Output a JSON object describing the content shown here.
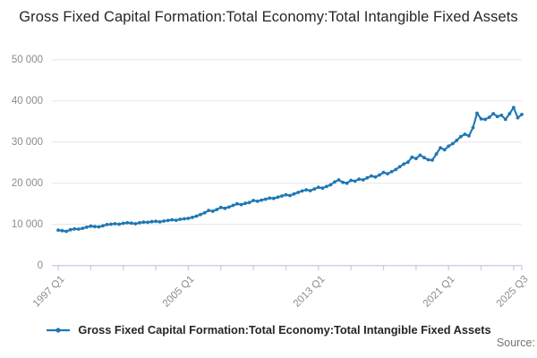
{
  "title": "Gross Fixed Capital Formation:Total Economy:Total Intangible Fixed Assets",
  "legend": {
    "label": "Gross Fixed Capital Formation:Total Economy:Total Intangible Fixed Assets"
  },
  "source_label": "Source:",
  "colors": {
    "series_line": "#1f77b4",
    "gridline": "#e6e6e6",
    "axis_line": "#c9cfe3",
    "tick_label": "#8c8c8c",
    "title_text": "#262626",
    "source_text": "#737373"
  },
  "chart_data": {
    "type": "line",
    "title": "Gross Fixed Capital Formation:Total Economy:Total Intangible Fixed Assets",
    "series_name": "Gross Fixed Capital Formation:Total Economy:Total Intangible Fixed Assets",
    "x_start": "1997 Q1",
    "x_end": "2025 Q3",
    "frequency": "quarterly",
    "ylim": [
      0,
      50000
    ],
    "grid": "horizontal",
    "legend_position": "bottom",
    "marker": "dot",
    "y_tick_labels": [
      "0",
      "10 000",
      "20 000",
      "30 000",
      "40 000",
      "50 000"
    ],
    "y_tick_values": [
      0,
      10000,
      20000,
      30000,
      40000,
      50000
    ],
    "x_tick_labels": [
      {
        "label": "1997 Q1",
        "q": 0
      },
      {
        "label": "2005 Q1",
        "q": 32
      },
      {
        "label": "2013 Q1",
        "q": 64
      },
      {
        "label": "2021 Q1",
        "q": 96
      },
      {
        "label": "2025 Q3",
        "q": 114
      }
    ],
    "minor_tick_every_quarters": 8,
    "values": [
      8600,
      8450,
      8300,
      8700,
      8900,
      8850,
      9050,
      9300,
      9570,
      9450,
      9400,
      9650,
      9950,
      10050,
      10150,
      10050,
      10250,
      10400,
      10300,
      10150,
      10400,
      10550,
      10500,
      10650,
      10750,
      10600,
      10800,
      10950,
      11100,
      11000,
      11240,
      11350,
      11450,
      11700,
      12000,
      12400,
      12800,
      13400,
      13200,
      13600,
      14100,
      13900,
      14200,
      14600,
      15000,
      14800,
      15100,
      15300,
      15800,
      15600,
      15900,
      16100,
      16400,
      16300,
      16600,
      16900,
      17200,
      17000,
      17400,
      17750,
      18100,
      18400,
      18200,
      18600,
      19000,
      18800,
      19200,
      19600,
      20300,
      20800,
      20200,
      20000,
      20700,
      20500,
      21000,
      20800,
      21300,
      21750,
      21500,
      22000,
      22600,
      22300,
      22800,
      23300,
      24000,
      24650,
      25100,
      26300,
      26000,
      26800,
      26200,
      25700,
      25600,
      27100,
      28600,
      28100,
      29000,
      29600,
      30400,
      31300,
      31900,
      31500,
      33500,
      37000,
      35600,
      35500,
      36000,
      36900,
      36200,
      36500,
      35500,
      36900,
      38400,
      35900,
      36700
    ]
  }
}
